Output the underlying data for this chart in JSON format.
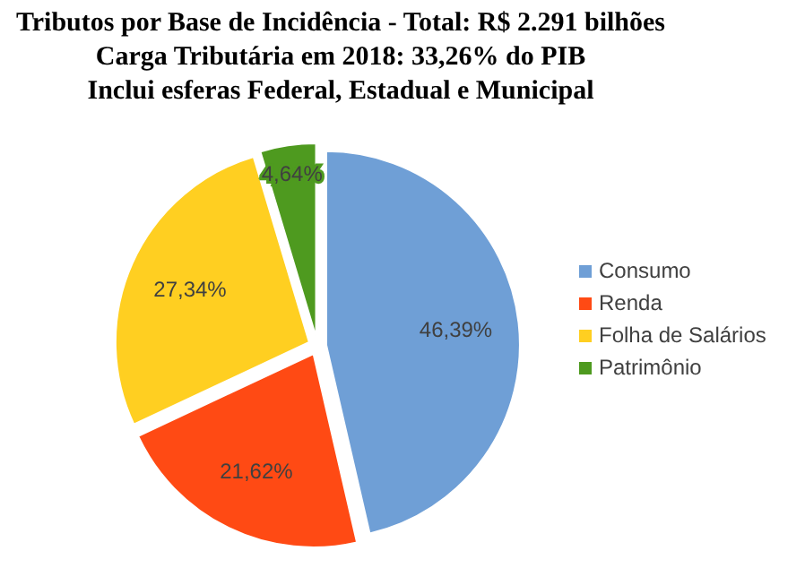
{
  "chart_data": {
    "type": "pie",
    "title": "Tributos por Base de Incidência - Total: R$ 2.291 bilhões",
    "subtitle": "Carga Tributária em 2018: 33,26% do PIB\nInclui esferas Federal, Estadual e Municipal",
    "categories": [
      "Consumo",
      "Renda",
      "Folha de Salários",
      "Patrimônio"
    ],
    "values": [
      46.39,
      21.62,
      27.34,
      4.64
    ],
    "colors": [
      "#6f9fd6",
      "#ff4a14",
      "#ffcf21",
      "#4e9a1f"
    ],
    "value_labels": [
      "46,39%",
      "21,62%",
      "27,34%",
      "4,64%"
    ],
    "legend": "right"
  }
}
